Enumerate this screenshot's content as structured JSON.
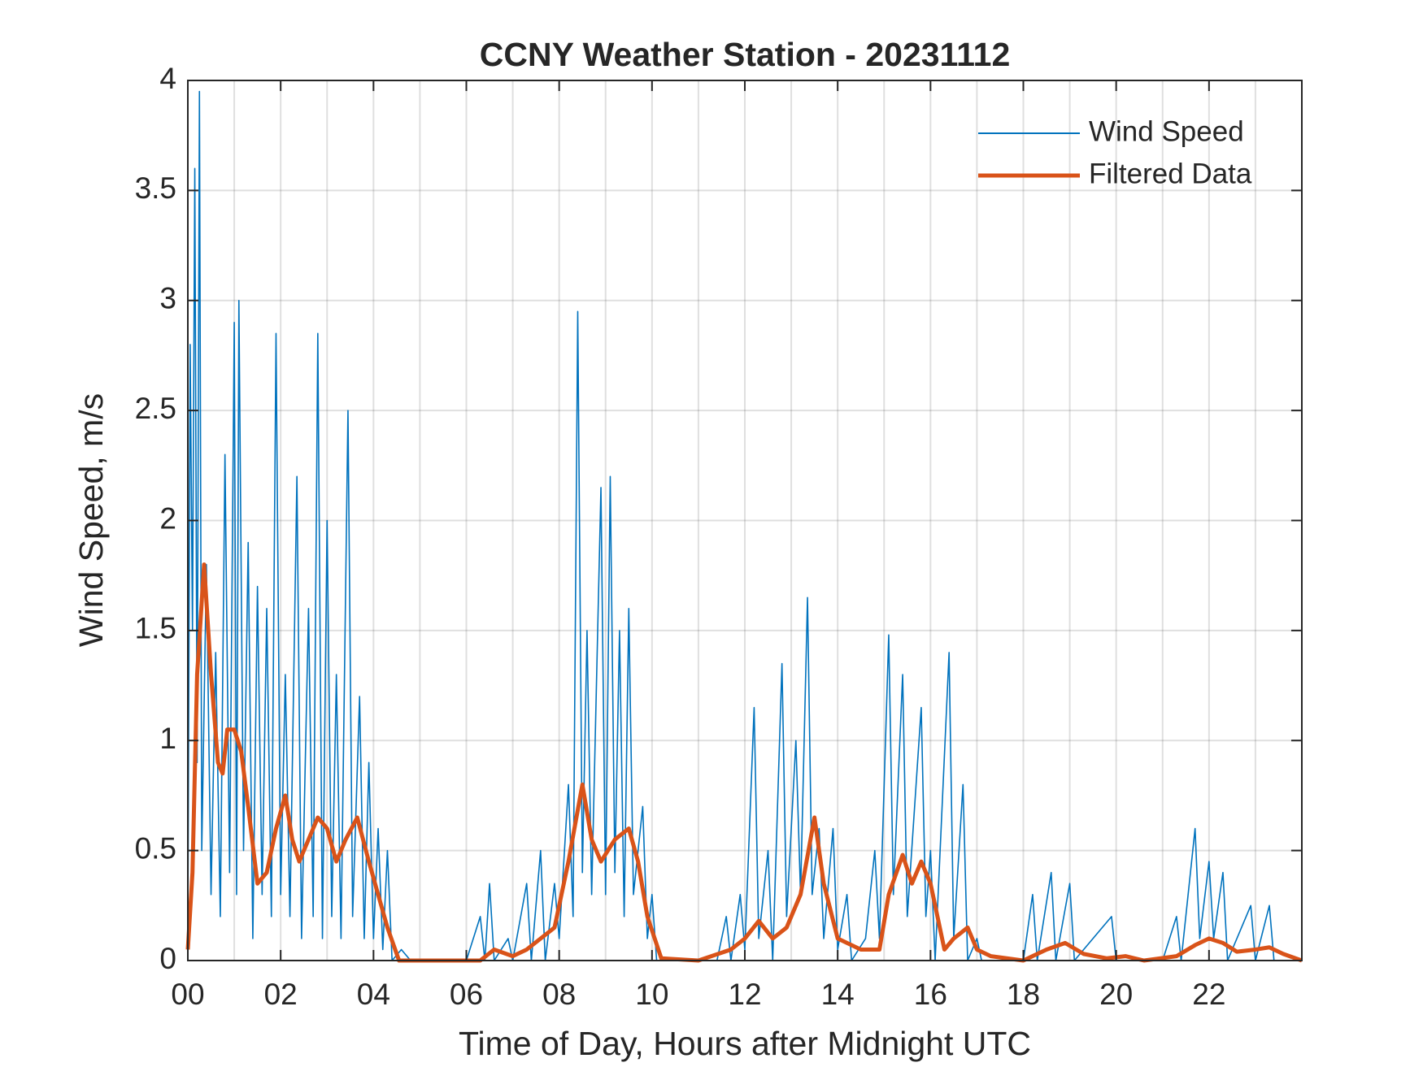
{
  "chart_data": {
    "type": "line",
    "title": "CCNY Weather Station - 20231112",
    "x_label": "Time of Day, Hours after Midnight UTC",
    "y_label": "Wind Speed, m/s",
    "xlim": [
      0,
      24
    ],
    "ylim": [
      0,
      4
    ],
    "xticks": [
      {
        "value": 0,
        "label": "00"
      },
      {
        "value": 2,
        "label": "02"
      },
      {
        "value": 4,
        "label": "04"
      },
      {
        "value": 6,
        "label": "06"
      },
      {
        "value": 8,
        "label": "08"
      },
      {
        "value": 10,
        "label": "10"
      },
      {
        "value": 12,
        "label": "12"
      },
      {
        "value": 14,
        "label": "14"
      },
      {
        "value": 16,
        "label": "16"
      },
      {
        "value": 18,
        "label": "18"
      },
      {
        "value": 20,
        "label": "20"
      },
      {
        "value": 22,
        "label": "22"
      }
    ],
    "xminorticks": [
      1,
      3,
      5,
      7,
      9,
      11,
      13,
      15,
      17,
      19,
      21,
      23
    ],
    "yticks": [
      0,
      0.5,
      1,
      1.5,
      2,
      2.5,
      3,
      3.5,
      4
    ],
    "grid": true,
    "legend": "top-right",
    "series": [
      {
        "name": "Wind Speed",
        "color": "#0072bd",
        "x": [
          0,
          0.05,
          0.1,
          0.15,
          0.2,
          0.25,
          0.3,
          0.4,
          0.5,
          0.6,
          0.7,
          0.8,
          0.9,
          1.0,
          1.05,
          1.1,
          1.2,
          1.3,
          1.4,
          1.5,
          1.6,
          1.7,
          1.8,
          1.9,
          2.0,
          2.1,
          2.2,
          2.35,
          2.45,
          2.6,
          2.7,
          2.8,
          2.9,
          3.0,
          3.1,
          3.2,
          3.3,
          3.45,
          3.55,
          3.7,
          3.8,
          3.9,
          4.0,
          4.1,
          4.2,
          4.3,
          4.4,
          4.6,
          4.8,
          5.5,
          6.0,
          6.3,
          6.4,
          6.5,
          6.6,
          6.9,
          7.0,
          7.3,
          7.4,
          7.6,
          7.7,
          7.9,
          8.0,
          8.2,
          8.3,
          8.4,
          8.5,
          8.6,
          8.7,
          8.9,
          9.0,
          9.1,
          9.2,
          9.3,
          9.4,
          9.5,
          9.6,
          9.8,
          9.9,
          10.0,
          10.1,
          10.5,
          11.4,
          11.6,
          11.7,
          11.9,
          12.0,
          12.2,
          12.3,
          12.5,
          12.6,
          12.8,
          12.9,
          13.1,
          13.2,
          13.35,
          13.45,
          13.6,
          13.7,
          13.9,
          14.0,
          14.2,
          14.3,
          14.6,
          14.8,
          14.9,
          15.1,
          15.2,
          15.4,
          15.5,
          15.8,
          15.9,
          16.0,
          16.1,
          16.4,
          16.5,
          16.7,
          16.8,
          17.0,
          17.1,
          18.0,
          18.2,
          18.3,
          18.6,
          18.7,
          19.0,
          19.1,
          19.9,
          20.0,
          21.0,
          21.3,
          21.4,
          21.7,
          21.8,
          22.0,
          22.1,
          22.3,
          22.4,
          22.9,
          23.0,
          23.3,
          23.4,
          24
        ],
        "values": [
          0.1,
          2.8,
          1.5,
          3.6,
          0.9,
          3.95,
          0.5,
          1.8,
          0.3,
          1.4,
          0.2,
          2.3,
          0.4,
          2.9,
          0.3,
          3.0,
          0.5,
          1.9,
          0.1,
          1.7,
          0.3,
          1.6,
          0.2,
          2.85,
          0.3,
          1.3,
          0.2,
          2.2,
          0.1,
          1.6,
          0.2,
          2.85,
          0.1,
          2.0,
          0.2,
          1.3,
          0.1,
          2.5,
          0.2,
          1.2,
          0.1,
          0.9,
          0.1,
          0.6,
          0.05,
          0.5,
          0,
          0.05,
          0,
          0,
          0,
          0.2,
          0,
          0.35,
          0,
          0.1,
          0,
          0.35,
          0,
          0.5,
          0,
          0.35,
          0.1,
          0.8,
          0.2,
          2.95,
          0.4,
          1.5,
          0.3,
          2.15,
          0.3,
          2.2,
          0.4,
          1.5,
          0.2,
          1.6,
          0.3,
          0.7,
          0.1,
          0.3,
          0,
          0,
          0,
          0.2,
          0,
          0.3,
          0.05,
          1.15,
          0.1,
          0.5,
          0,
          1.35,
          0.2,
          1.0,
          0.3,
          1.65,
          0.3,
          0.6,
          0.1,
          0.6,
          0.05,
          0.3,
          0,
          0.1,
          0.5,
          0.1,
          1.48,
          0.3,
          1.3,
          0.2,
          1.15,
          0.2,
          0.5,
          0,
          1.4,
          0.1,
          0.8,
          0,
          0.1,
          0,
          0,
          0.3,
          0,
          0.4,
          0,
          0.35,
          0,
          0.2,
          0,
          0,
          0.2,
          0,
          0.6,
          0.1,
          0.45,
          0.1,
          0.4,
          0,
          0.25,
          0,
          0.25,
          0,
          0
        ]
      },
      {
        "name": "Filtered Data",
        "color": "#d95319",
        "x": [
          0,
          0.1,
          0.2,
          0.35,
          0.5,
          0.65,
          0.75,
          0.85,
          1.0,
          1.15,
          1.3,
          1.5,
          1.7,
          1.9,
          2.1,
          2.25,
          2.4,
          2.6,
          2.8,
          3.0,
          3.2,
          3.4,
          3.65,
          3.9,
          4.1,
          4.3,
          4.55,
          5.5,
          6.3,
          6.6,
          7.0,
          7.3,
          7.6,
          7.9,
          8.2,
          8.5,
          8.7,
          8.9,
          9.2,
          9.5,
          9.7,
          9.9,
          10.2,
          11.0,
          11.7,
          12.0,
          12.3,
          12.6,
          12.9,
          13.2,
          13.5,
          13.7,
          14.0,
          14.5,
          14.9,
          15.1,
          15.4,
          15.6,
          15.8,
          16.0,
          16.3,
          16.5,
          16.8,
          17.0,
          17.3,
          18.0,
          18.5,
          18.9,
          19.3,
          19.8,
          20.2,
          20.6,
          21.3,
          21.7,
          22.0,
          22.3,
          22.6,
          23.0,
          23.3,
          23.6,
          24
        ],
        "values": [
          0.05,
          0.4,
          1.3,
          1.8,
          1.3,
          0.9,
          0.85,
          1.05,
          1.05,
          0.95,
          0.7,
          0.35,
          0.4,
          0.6,
          0.75,
          0.55,
          0.45,
          0.55,
          0.65,
          0.6,
          0.45,
          0.55,
          0.65,
          0.45,
          0.3,
          0.15,
          0,
          0,
          0,
          0.05,
          0.02,
          0.05,
          0.1,
          0.15,
          0.45,
          0.8,
          0.55,
          0.45,
          0.55,
          0.6,
          0.45,
          0.2,
          0.01,
          0,
          0.05,
          0.1,
          0.18,
          0.1,
          0.15,
          0.3,
          0.65,
          0.35,
          0.1,
          0.05,
          0.05,
          0.3,
          0.48,
          0.35,
          0.45,
          0.35,
          0.05,
          0.1,
          0.15,
          0.05,
          0.02,
          0,
          0.05,
          0.08,
          0.03,
          0.01,
          0.02,
          0,
          0.02,
          0.07,
          0.1,
          0.08,
          0.04,
          0.05,
          0.06,
          0.03,
          0
        ]
      }
    ]
  }
}
